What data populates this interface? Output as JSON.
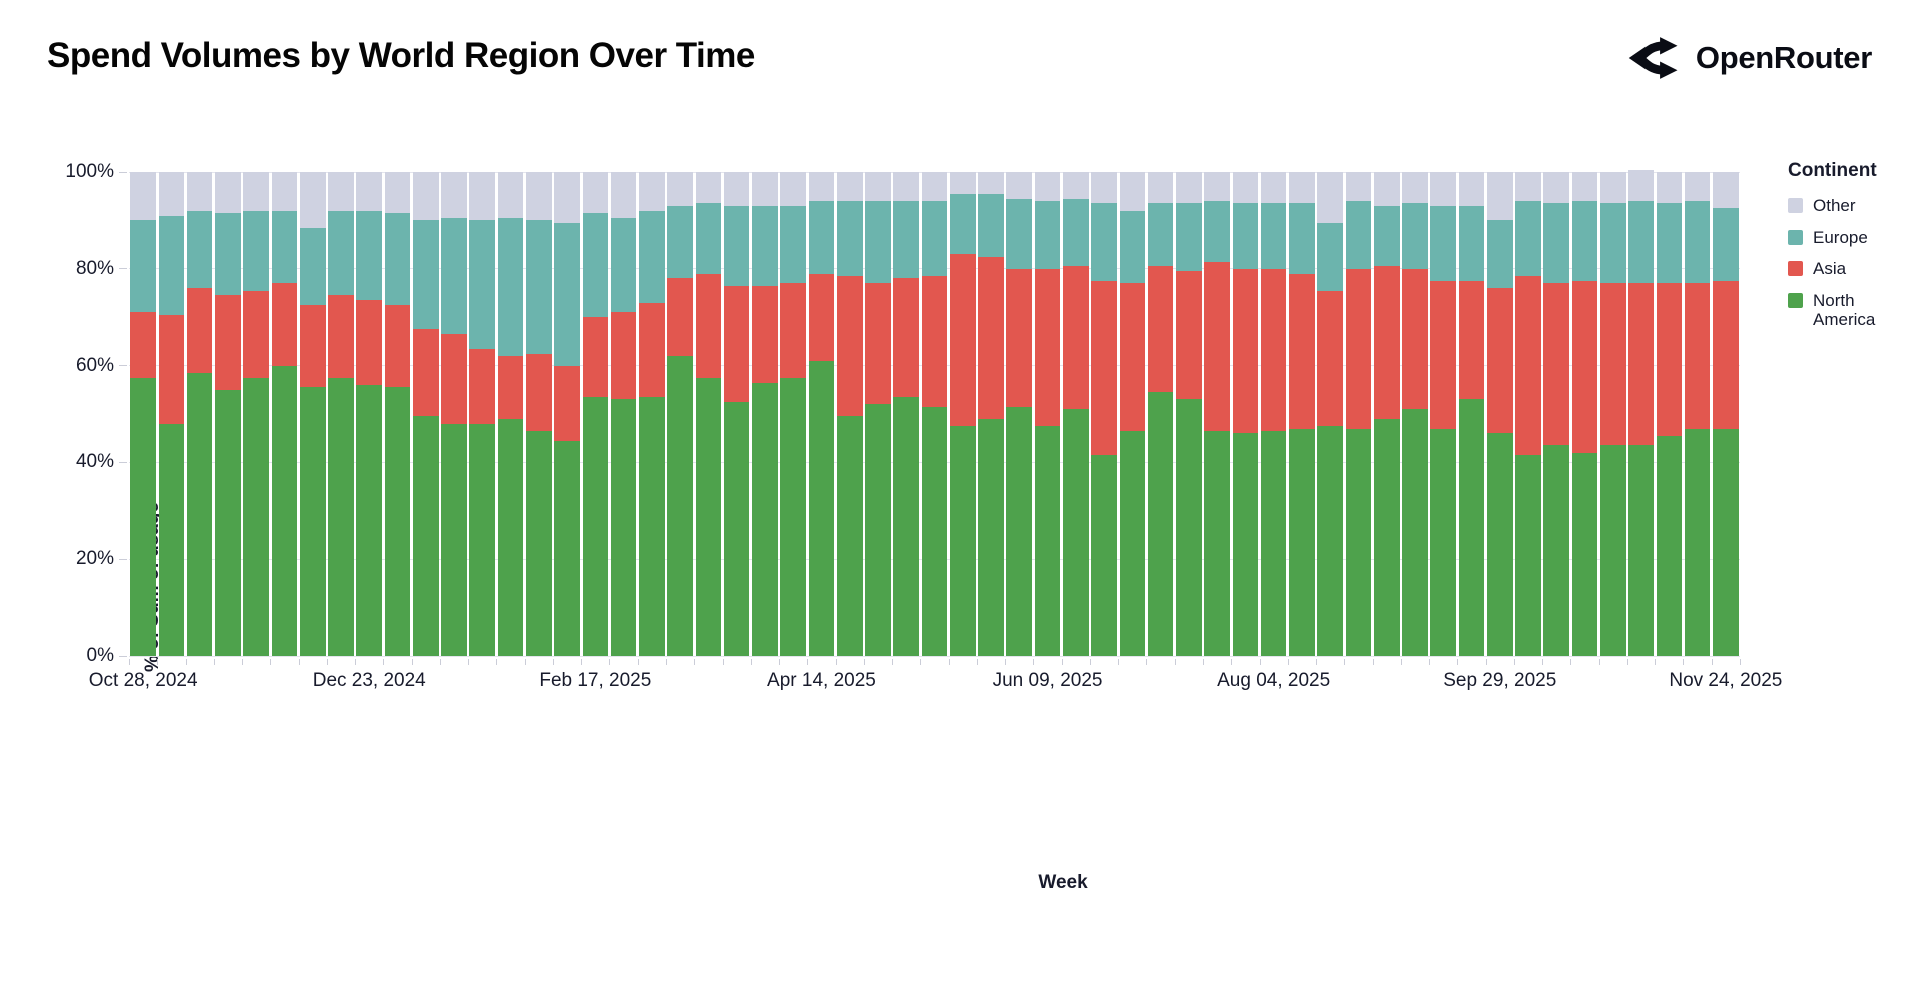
{
  "page": {
    "title": "Spend Volumes by World Region Over Time",
    "brand": {
      "name": "OpenRouter",
      "icon": "openrouter-logo-icon"
    }
  },
  "chart_data": {
    "type": "bar",
    "subtype": "stacked-100-percent",
    "title": "Spend Volumes by World Region Over Time",
    "xlabel": "Week",
    "ylabel": "% of Sum of usage",
    "ylim": [
      0,
      100
    ],
    "grid": "horizontal-light",
    "y_ticks": [
      "0%",
      "20%",
      "40%",
      "60%",
      "80%",
      "100%"
    ],
    "x_tick_labels": [
      "Oct 28, 2024",
      "Dec 23, 2024",
      "Feb 17, 2025",
      "Apr 14, 2025",
      "Jun 09, 2025",
      "Aug 04, 2025",
      "Sep 29, 2025",
      "Nov 24, 2025"
    ],
    "x_tick_indices": [
      0,
      8,
      16,
      24,
      32,
      40,
      48,
      56
    ],
    "categories": [
      "Oct 28, 2024",
      "Nov 04, 2024",
      "Nov 11, 2024",
      "Nov 18, 2024",
      "Nov 25, 2024",
      "Dec 02, 2024",
      "Dec 09, 2024",
      "Dec 16, 2024",
      "Dec 23, 2024",
      "Dec 30, 2024",
      "Jan 06, 2025",
      "Jan 13, 2025",
      "Jan 20, 2025",
      "Jan 27, 2025",
      "Feb 03, 2025",
      "Feb 10, 2025",
      "Feb 17, 2025",
      "Feb 24, 2025",
      "Mar 03, 2025",
      "Mar 10, 2025",
      "Mar 17, 2025",
      "Mar 24, 2025",
      "Mar 31, 2025",
      "Apr 07, 2025",
      "Apr 14, 2025",
      "Apr 21, 2025",
      "Apr 28, 2025",
      "May 05, 2025",
      "May 12, 2025",
      "May 19, 2025",
      "May 26, 2025",
      "Jun 02, 2025",
      "Jun 09, 2025",
      "Jun 16, 2025",
      "Jun 23, 2025",
      "Jun 30, 2025",
      "Jul 07, 2025",
      "Jul 14, 2025",
      "Jul 21, 2025",
      "Jul 28, 2025",
      "Aug 04, 2025",
      "Aug 11, 2025",
      "Aug 18, 2025",
      "Aug 25, 2025",
      "Sep 01, 2025",
      "Sep 08, 2025",
      "Sep 15, 2025",
      "Sep 22, 2025",
      "Sep 29, 2025",
      "Oct 06, 2025",
      "Oct 13, 2025",
      "Oct 20, 2025",
      "Oct 27, 2025",
      "Nov 03, 2025",
      "Nov 10, 2025",
      "Nov 17, 2025",
      "Nov 24, 2025"
    ],
    "stack_order_bottom_to_top": [
      "North America",
      "Asia",
      "Europe",
      "Other"
    ],
    "series": [
      {
        "name": "North America",
        "color": "#4EA24C",
        "values": [
          57.5,
          48,
          58.5,
          55,
          57.5,
          60,
          55.5,
          57.5,
          56,
          55.5,
          49.5,
          48,
          48,
          49,
          46.5,
          44.5,
          53.5,
          53,
          53.5,
          62,
          57.5,
          52.5,
          56.5,
          57.5,
          61,
          49.5,
          52,
          53.5,
          51.5,
          47.5,
          49,
          51.5,
          47.5,
          51,
          41.5,
          46.5,
          54.5,
          53,
          46.5,
          46,
          46.5,
          47,
          47.5,
          47,
          49,
          51,
          47,
          53,
          46,
          41.5,
          43.5,
          42,
          43.5,
          43.5,
          45.5,
          47,
          47
        ]
      },
      {
        "name": "Asia",
        "color": "#E2574F",
        "values": [
          13.5,
          22.5,
          17.5,
          19.5,
          18,
          17,
          17,
          17,
          17.5,
          17,
          18,
          18.5,
          15.5,
          13,
          16,
          15.5,
          16.5,
          18,
          19.5,
          16,
          21.5,
          24,
          20,
          19.5,
          18,
          29,
          25,
          24.5,
          27,
          35.5,
          33.5,
          28.5,
          32.5,
          29.5,
          36,
          30.5,
          26,
          26.5,
          35,
          34,
          33.5,
          32,
          28,
          33,
          31.5,
          29,
          30.5,
          24.5,
          30,
          37,
          33.5,
          35.5,
          33.5,
          33.5,
          31.5,
          30,
          30.5
        ]
      },
      {
        "name": "Europe",
        "color": "#6CB4AD",
        "values": [
          19,
          20.5,
          16,
          17,
          16.5,
          15,
          16,
          17.5,
          18.5,
          19,
          22.5,
          24,
          26.5,
          28.5,
          27.5,
          29.5,
          21.5,
          19.5,
          19,
          15,
          14.5,
          16.5,
          16.5,
          16,
          15,
          15.5,
          17,
          16,
          15.5,
          12.5,
          13,
          14.5,
          14,
          14,
          16,
          15,
          13,
          14,
          12.5,
          13.5,
          13.5,
          14.5,
          14,
          14,
          12.5,
          13.5,
          15.5,
          15.5,
          14,
          15.5,
          16.5,
          16.5,
          16.5,
          17,
          16.5,
          17,
          15
        ]
      },
      {
        "name": "Other",
        "color": "#CFD2E1",
        "values": [
          10,
          9,
          8,
          8.5,
          8,
          8,
          11.5,
          8,
          8,
          8.5,
          10,
          9.5,
          10,
          9.5,
          10,
          10.5,
          8.5,
          9.5,
          8,
          7,
          6.5,
          7,
          7,
          7,
          6,
          6,
          6,
          6,
          6,
          4.5,
          4.5,
          5.5,
          6,
          5.5,
          6.5,
          8,
          6.5,
          6.5,
          6,
          6.5,
          6.5,
          6.5,
          10.5,
          6,
          7,
          6.5,
          7,
          7,
          10,
          6,
          6.5,
          6,
          6.5,
          6.5,
          6.5,
          6,
          7.5
        ]
      }
    ],
    "legend": {
      "title": "Continent",
      "position": "right",
      "items": [
        {
          "label": "Other",
          "color": "#CFD2E1"
        },
        {
          "label": "Europe",
          "color": "#6CB4AD"
        },
        {
          "label": "Asia",
          "color": "#E2574F"
        },
        {
          "label": "North America",
          "color": "#4EA24C"
        }
      ]
    }
  }
}
